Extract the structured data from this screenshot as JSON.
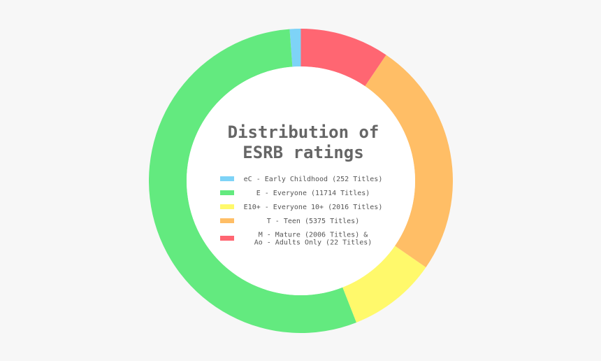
{
  "chart_data": {
    "type": "pie",
    "variant": "donut",
    "title_lines": [
      "Distribution of",
      "ESRB ratings"
    ],
    "categories": [
      "eC - Early Childhood (252 Titles)",
      "E - Everyone (11714 Titles)",
      "E10+ - Everyone 10+ (2016 Titles)",
      "T - Teen (5375 Titles)",
      "M - Mature (2006 Titles) & Ao - Adults Only (22 Titles)"
    ],
    "values": [
      252,
      11714,
      2016,
      5375,
      2028
    ],
    "colors": [
      "#7ed3f7",
      "#63ea7f",
      "#fff96b",
      "#ffbe66",
      "#ff6672"
    ],
    "legend": {
      "placement": "center",
      "entries": [
        {
          "lines": [
            "eC - Early Childhood (252 Titles)"
          ],
          "color": "#7ed3f7"
        },
        {
          "lines": [
            "E - Everyone (11714 Titles)"
          ],
          "color": "#63ea7f"
        },
        {
          "lines": [
            "E10+ - Everyone 10+ (2016 Titles)"
          ],
          "color": "#fff96b"
        },
        {
          "lines": [
            "T - Teen (5375 Titles)"
          ],
          "color": "#ffbe66"
        },
        {
          "lines": [
            "M - Mature (2006 Titles) &",
            "Ao - Adults Only (22 Titles)"
          ],
          "color": "#ff6672"
        }
      ]
    }
  }
}
